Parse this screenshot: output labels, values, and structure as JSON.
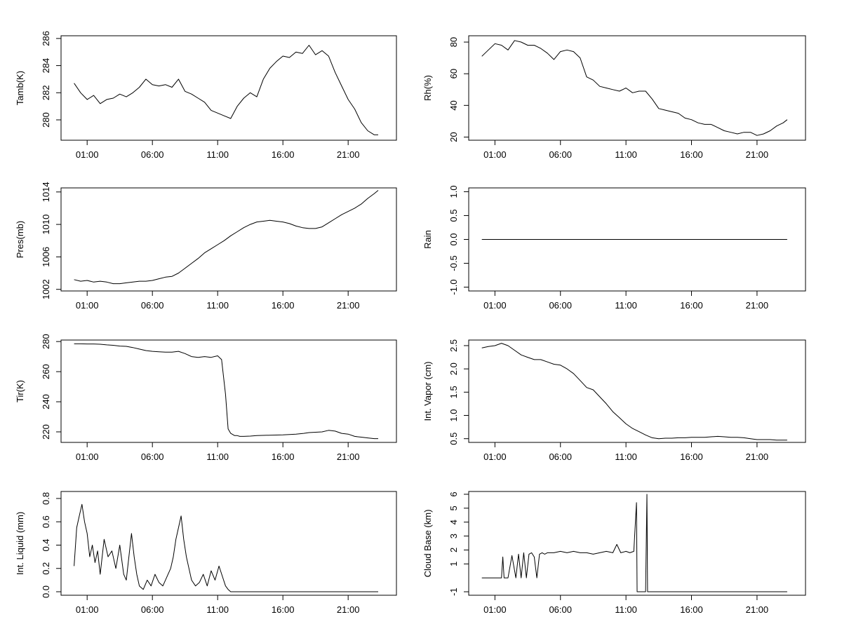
{
  "chart_data": [
    {
      "type": "line",
      "ylabel": "Tamb(K)",
      "xticks": [
        "01:00",
        "06:00",
        "11:00",
        "16:00",
        "21:00"
      ],
      "yticks": [
        280,
        282,
        284,
        286
      ],
      "ylim": [
        278.5,
        286.2
      ],
      "series": [
        {
          "name": "Tamb",
          "x": [
            0.0,
            0.5,
            1.0,
            1.5,
            2.0,
            2.5,
            3.0,
            3.5,
            4.0,
            4.5,
            5.0,
            5.5,
            6.0,
            6.5,
            7.0,
            7.5,
            8.0,
            8.5,
            9.0,
            9.5,
            10.0,
            10.5,
            11.0,
            11.5,
            12.0,
            12.5,
            13.0,
            13.5,
            14.0,
            14.5,
            15.0,
            15.5,
            16.0,
            16.5,
            17.0,
            17.5,
            18.0,
            18.5,
            19.0,
            19.5,
            20.0,
            20.5,
            21.0,
            21.5,
            22.0,
            22.5,
            23.0,
            23.3
          ],
          "y": [
            282.7,
            282.0,
            281.5,
            281.8,
            281.2,
            281.5,
            281.6,
            281.9,
            281.7,
            282.0,
            282.4,
            283.0,
            282.6,
            282.5,
            282.6,
            282.4,
            283.0,
            282.1,
            281.9,
            281.6,
            281.3,
            280.7,
            280.5,
            280.3,
            280.1,
            281.0,
            281.6,
            282.0,
            281.7,
            283.0,
            283.8,
            284.3,
            284.7,
            284.6,
            285.0,
            284.9,
            285.5,
            284.8,
            285.1,
            284.7,
            283.5,
            282.5,
            281.5,
            280.8,
            279.8,
            279.2,
            278.9,
            278.9
          ]
        }
      ]
    },
    {
      "type": "line",
      "ylabel": "Rh(%)",
      "xticks": [
        "01:00",
        "06:00",
        "11:00",
        "16:00",
        "21:00"
      ],
      "yticks": [
        20,
        40,
        60,
        80
      ],
      "ylim": [
        18,
        84
      ],
      "series": [
        {
          "name": "Rh",
          "x": [
            0.0,
            0.5,
            1.0,
            1.5,
            2.0,
            2.5,
            3.0,
            3.5,
            4.0,
            4.5,
            5.0,
            5.5,
            6.0,
            6.5,
            7.0,
            7.5,
            8.0,
            8.5,
            9.0,
            9.5,
            10.0,
            10.5,
            11.0,
            11.5,
            12.0,
            12.5,
            13.0,
            13.5,
            14.0,
            14.5,
            15.0,
            15.5,
            16.0,
            16.5,
            17.0,
            17.5,
            18.0,
            18.5,
            19.0,
            19.5,
            20.0,
            20.5,
            21.0,
            21.5,
            22.0,
            22.5,
            23.0,
            23.3
          ],
          "y": [
            71,
            75,
            79,
            78,
            75,
            81,
            80,
            78,
            78,
            76,
            73,
            69,
            74,
            75,
            74,
            70,
            58,
            56,
            52,
            51,
            50,
            49,
            51,
            48,
            49,
            49,
            44,
            38,
            37,
            36,
            35,
            32,
            31,
            29,
            28,
            28,
            26,
            24,
            23,
            22,
            23,
            23,
            21,
            22,
            24,
            27,
            29,
            31
          ]
        }
      ]
    },
    {
      "type": "line",
      "ylabel": "Pres(mb)",
      "xticks": [
        "01:00",
        "06:00",
        "11:00",
        "16:00",
        "21:00"
      ],
      "yticks": [
        1002,
        1006,
        1010,
        1014
      ],
      "ylim": [
        1001.8,
        1014.5
      ],
      "series": [
        {
          "name": "Pres",
          "x": [
            0.0,
            0.5,
            1.0,
            1.5,
            2.0,
            2.5,
            3.0,
            3.5,
            4.0,
            4.5,
            5.0,
            5.5,
            6.0,
            6.5,
            7.0,
            7.5,
            8.0,
            8.5,
            9.0,
            9.5,
            10.0,
            10.5,
            11.0,
            11.5,
            12.0,
            12.5,
            13.0,
            13.5,
            14.0,
            14.5,
            15.0,
            15.5,
            16.0,
            16.5,
            17.0,
            17.5,
            18.0,
            18.5,
            19.0,
            19.5,
            20.0,
            20.5,
            21.0,
            21.5,
            22.0,
            22.5,
            23.0,
            23.3
          ],
          "y": [
            1003.2,
            1003.0,
            1003.1,
            1002.9,
            1003.0,
            1002.9,
            1002.7,
            1002.7,
            1002.8,
            1002.9,
            1003.0,
            1003.0,
            1003.1,
            1003.3,
            1003.5,
            1003.6,
            1004.0,
            1004.6,
            1005.2,
            1005.8,
            1006.5,
            1007.0,
            1007.5,
            1008.0,
            1008.6,
            1009.1,
            1009.6,
            1010.0,
            1010.3,
            1010.4,
            1010.5,
            1010.4,
            1010.3,
            1010.1,
            1009.8,
            1009.6,
            1009.5,
            1009.5,
            1009.7,
            1010.2,
            1010.7,
            1011.2,
            1011.6,
            1012.0,
            1012.5,
            1013.2,
            1013.8,
            1014.2
          ]
        }
      ]
    },
    {
      "type": "line",
      "ylabel": "Rain",
      "xticks": [
        "01:00",
        "06:00",
        "11:00",
        "16:00",
        "21:00"
      ],
      "yticks": [
        "-1.0",
        "-0.5",
        "0.0",
        "0.5",
        "1.0"
      ],
      "ylim": [
        -1.08,
        1.08
      ],
      "series": [
        {
          "name": "Rain",
          "x": [
            0.0,
            23.3
          ],
          "y": [
            0.0,
            0.0
          ]
        }
      ]
    },
    {
      "type": "line",
      "ylabel": "Tir(K)",
      "xticks": [
        "01:00",
        "06:00",
        "11:00",
        "16:00",
        "21:00"
      ],
      "yticks": [
        220,
        240,
        260,
        280
      ],
      "ylim": [
        213,
        281
      ],
      "series": [
        {
          "name": "Tir",
          "x": [
            0.0,
            0.5,
            1.0,
            1.5,
            2.0,
            2.5,
            3.0,
            3.5,
            4.0,
            4.5,
            5.0,
            5.5,
            6.0,
            6.5,
            7.0,
            7.5,
            8.0,
            8.5,
            9.0,
            9.5,
            10.0,
            10.5,
            11.0,
            11.3,
            11.6,
            11.8,
            12.0,
            12.3,
            12.5,
            12.7,
            13.0,
            13.5,
            14.0,
            15.0,
            16.0,
            17.0,
            17.6,
            18.0,
            19.0,
            19.5,
            20.0,
            20.5,
            21.0,
            21.5,
            22.0,
            22.5,
            23.0,
            23.3
          ],
          "y": [
            278.5,
            278.5,
            278.4,
            278.4,
            278.2,
            277.8,
            277.5,
            277.0,
            276.8,
            276.0,
            275.0,
            274.0,
            273.5,
            273.2,
            273.0,
            273.0,
            273.5,
            272.0,
            270.0,
            269.5,
            270.0,
            269.5,
            270.5,
            268.0,
            245.0,
            222.0,
            219.0,
            217.5,
            217.5,
            217.0,
            217.0,
            217.2,
            217.5,
            217.8,
            218.0,
            218.5,
            219.0,
            219.5,
            220.0,
            221.0,
            220.5,
            219.0,
            218.5,
            217.0,
            216.5,
            216.0,
            215.5,
            215.5
          ]
        }
      ]
    },
    {
      "type": "line",
      "ylabel": "Int. Vapor (cm)",
      "xticks": [
        "01:00",
        "06:00",
        "11:00",
        "16:00",
        "21:00"
      ],
      "yticks": [
        "0.5",
        "1.0",
        "1.5",
        "2.0",
        "2.5"
      ],
      "ylim": [
        0.42,
        2.62
      ],
      "series": [
        {
          "name": "Int. Vapor",
          "x": [
            0.0,
            0.5,
            1.0,
            1.5,
            2.0,
            2.5,
            3.0,
            3.5,
            4.0,
            4.5,
            5.0,
            5.5,
            6.0,
            6.5,
            7.0,
            7.5,
            8.0,
            8.5,
            9.0,
            9.5,
            10.0,
            10.5,
            11.0,
            11.5,
            12.0,
            12.5,
            13.0,
            13.5,
            14.0,
            14.5,
            15.0,
            15.5,
            16.0,
            16.5,
            17.0,
            17.5,
            18.0,
            18.5,
            19.0,
            19.5,
            20.0,
            20.5,
            21.0,
            21.5,
            22.0,
            22.5,
            23.0,
            23.3
          ],
          "y": [
            2.45,
            2.48,
            2.5,
            2.55,
            2.5,
            2.4,
            2.3,
            2.25,
            2.2,
            2.2,
            2.15,
            2.1,
            2.08,
            2.0,
            1.9,
            1.75,
            1.6,
            1.55,
            1.4,
            1.25,
            1.08,
            0.95,
            0.82,
            0.72,
            0.65,
            0.58,
            0.52,
            0.5,
            0.51,
            0.51,
            0.52,
            0.52,
            0.53,
            0.53,
            0.53,
            0.54,
            0.55,
            0.54,
            0.53,
            0.53,
            0.52,
            0.5,
            0.48,
            0.48,
            0.48,
            0.47,
            0.47,
            0.47
          ]
        }
      ]
    },
    {
      "type": "line",
      "ylabel": "Int. Liquid (mm)",
      "xticks": [
        "01:00",
        "06:00",
        "11:00",
        "16:00",
        "21:00"
      ],
      "yticks": [
        "0.0",
        "0.2",
        "0.4",
        "0.6",
        "0.8"
      ],
      "ylim": [
        -0.03,
        0.86
      ],
      "series": [
        {
          "name": "Int. Liquid",
          "x": [
            0.0,
            0.2,
            0.4,
            0.6,
            0.8,
            1.0,
            1.2,
            1.4,
            1.6,
            1.8,
            2.0,
            2.3,
            2.6,
            2.9,
            3.2,
            3.5,
            3.8,
            4.0,
            4.2,
            4.4,
            4.6,
            4.8,
            5.0,
            5.3,
            5.6,
            5.9,
            6.2,
            6.5,
            6.8,
            7.0,
            7.2,
            7.4,
            7.6,
            7.8,
            8.0,
            8.2,
            8.4,
            8.6,
            8.8,
            9.0,
            9.3,
            9.6,
            9.9,
            10.2,
            10.5,
            10.8,
            11.1,
            11.4,
            11.6,
            11.8,
            12.0,
            15.0,
            20.0,
            23.3
          ],
          "y": [
            0.22,
            0.55,
            0.65,
            0.75,
            0.6,
            0.5,
            0.3,
            0.4,
            0.25,
            0.35,
            0.15,
            0.45,
            0.3,
            0.35,
            0.2,
            0.4,
            0.15,
            0.1,
            0.3,
            0.5,
            0.3,
            0.15,
            0.05,
            0.02,
            0.1,
            0.05,
            0.15,
            0.08,
            0.05,
            0.1,
            0.15,
            0.2,
            0.3,
            0.45,
            0.55,
            0.65,
            0.45,
            0.3,
            0.2,
            0.1,
            0.05,
            0.08,
            0.15,
            0.05,
            0.18,
            0.1,
            0.22,
            0.12,
            0.05,
            0.02,
            0.0,
            0.0,
            0.0,
            0.0
          ]
        }
      ]
    },
    {
      "type": "line",
      "ylabel": "Cloud Base (km)",
      "xticks": [
        "01:00",
        "06:00",
        "11:00",
        "16:00",
        "21:00"
      ],
      "yticks": [
        "-1",
        "1",
        "2",
        "3",
        "4",
        "5",
        "6"
      ],
      "ylim": [
        -1.25,
        6.2
      ],
      "series": [
        {
          "name": "Cloud Base",
          "x": [
            0.0,
            0.5,
            1.0,
            1.5,
            1.6,
            1.7,
            2.0,
            2.3,
            2.6,
            2.8,
            3.0,
            3.2,
            3.4,
            3.6,
            3.8,
            4.0,
            4.2,
            4.4,
            4.6,
            4.8,
            5.0,
            5.5,
            6.0,
            6.5,
            7.0,
            7.5,
            8.0,
            8.5,
            9.0,
            9.5,
            10.0,
            10.3,
            10.6,
            11.0,
            11.3,
            11.6,
            11.8,
            11.85,
            12.0,
            12.5,
            12.6,
            12.65,
            12.7,
            15.0,
            20.0,
            23.3
          ],
          "y": [
            0.0,
            0.0,
            0.0,
            0.0,
            1.5,
            0.0,
            0.0,
            1.6,
            0.0,
            1.7,
            0.0,
            1.8,
            0.0,
            1.7,
            1.8,
            1.5,
            0.0,
            1.7,
            1.8,
            1.7,
            1.8,
            1.8,
            1.9,
            1.8,
            1.9,
            1.8,
            1.8,
            1.7,
            1.8,
            1.9,
            1.8,
            2.4,
            1.8,
            1.9,
            1.8,
            1.9,
            5.4,
            -1.0,
            -1.0,
            -1.0,
            6.0,
            -1.0,
            -1.0,
            -1.0,
            -1.0,
            -1.0
          ]
        }
      ]
    }
  ]
}
